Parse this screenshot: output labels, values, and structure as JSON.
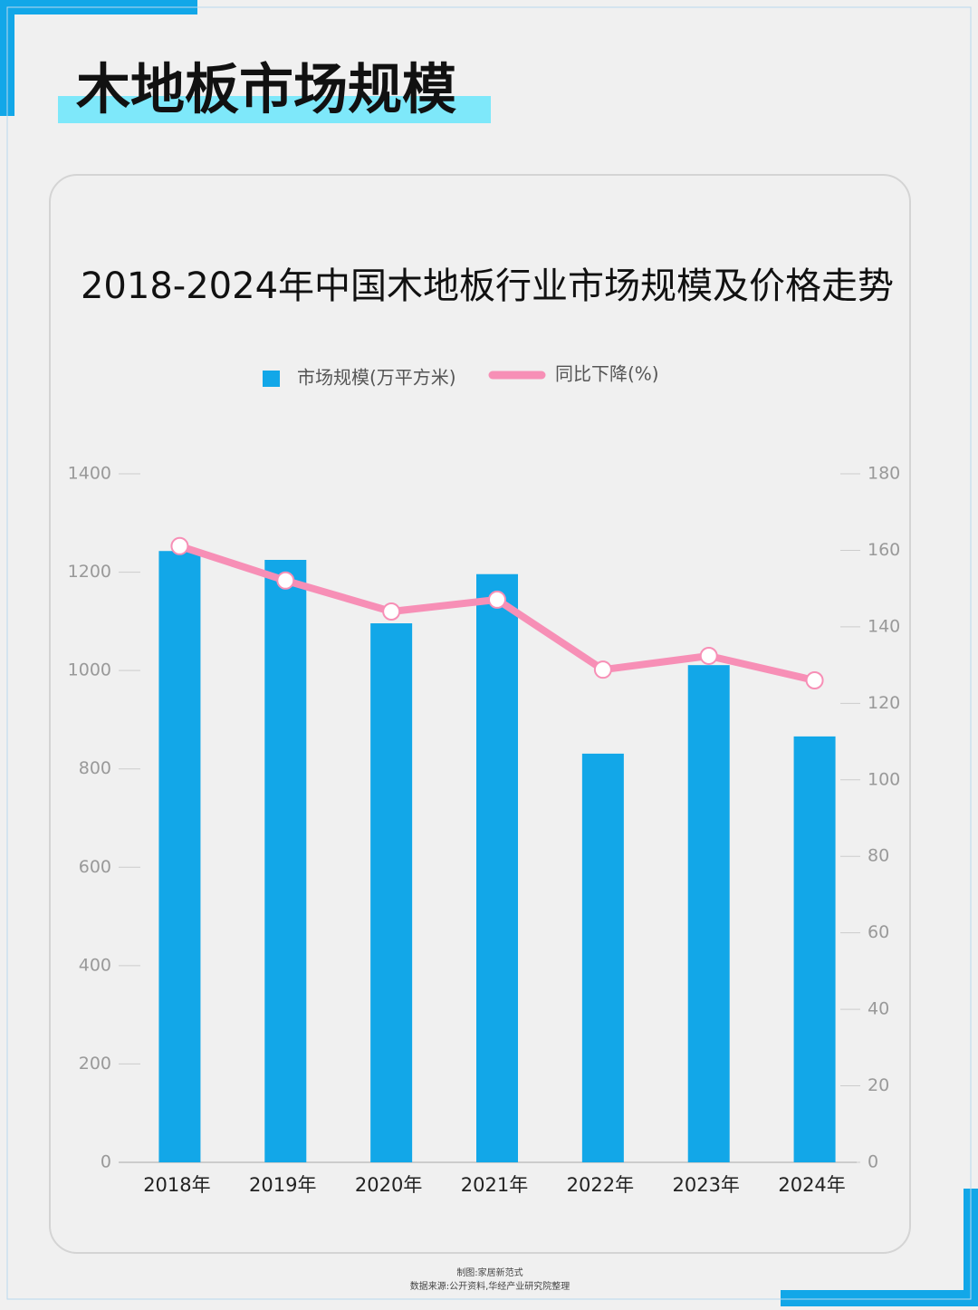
{
  "page_title": "木地板市场规模",
  "chart_data": {
    "type": "bar-line",
    "title": "2018-2024年中国木地板行业市场规模及价格走势",
    "categories": [
      "2018年",
      "2019年",
      "2020年",
      "2021年",
      "2022年",
      "2023年",
      "2024年"
    ],
    "series": [
      {
        "name": "市场规模(万平方米)",
        "type": "bar",
        "color": "#12a7e8",
        "values": [
          1243,
          1225,
          1096,
          1196,
          831,
          1011,
          866
        ]
      },
      {
        "name": "同比下降(%)",
        "type": "line",
        "axis": "y2",
        "color": "#f78fb6",
        "values": [
          161.1,
          152.1,
          144,
          147.1,
          128.8,
          132.4,
          126
        ]
      }
    ],
    "ylim": [
      0,
      1400
    ],
    "yticks": [
      0,
      200,
      400,
      600,
      800,
      1000,
      1200,
      1400
    ],
    "y2lim": [
      0,
      180
    ],
    "y2ticks": [
      0,
      20,
      40,
      60,
      80,
      100,
      120,
      140,
      160,
      180
    ],
    "legend": "top",
    "grid": false
  },
  "footer": {
    "credit": "制图:家居新范式",
    "source": "数据来源:公开资料,华经产业研究院整理"
  }
}
